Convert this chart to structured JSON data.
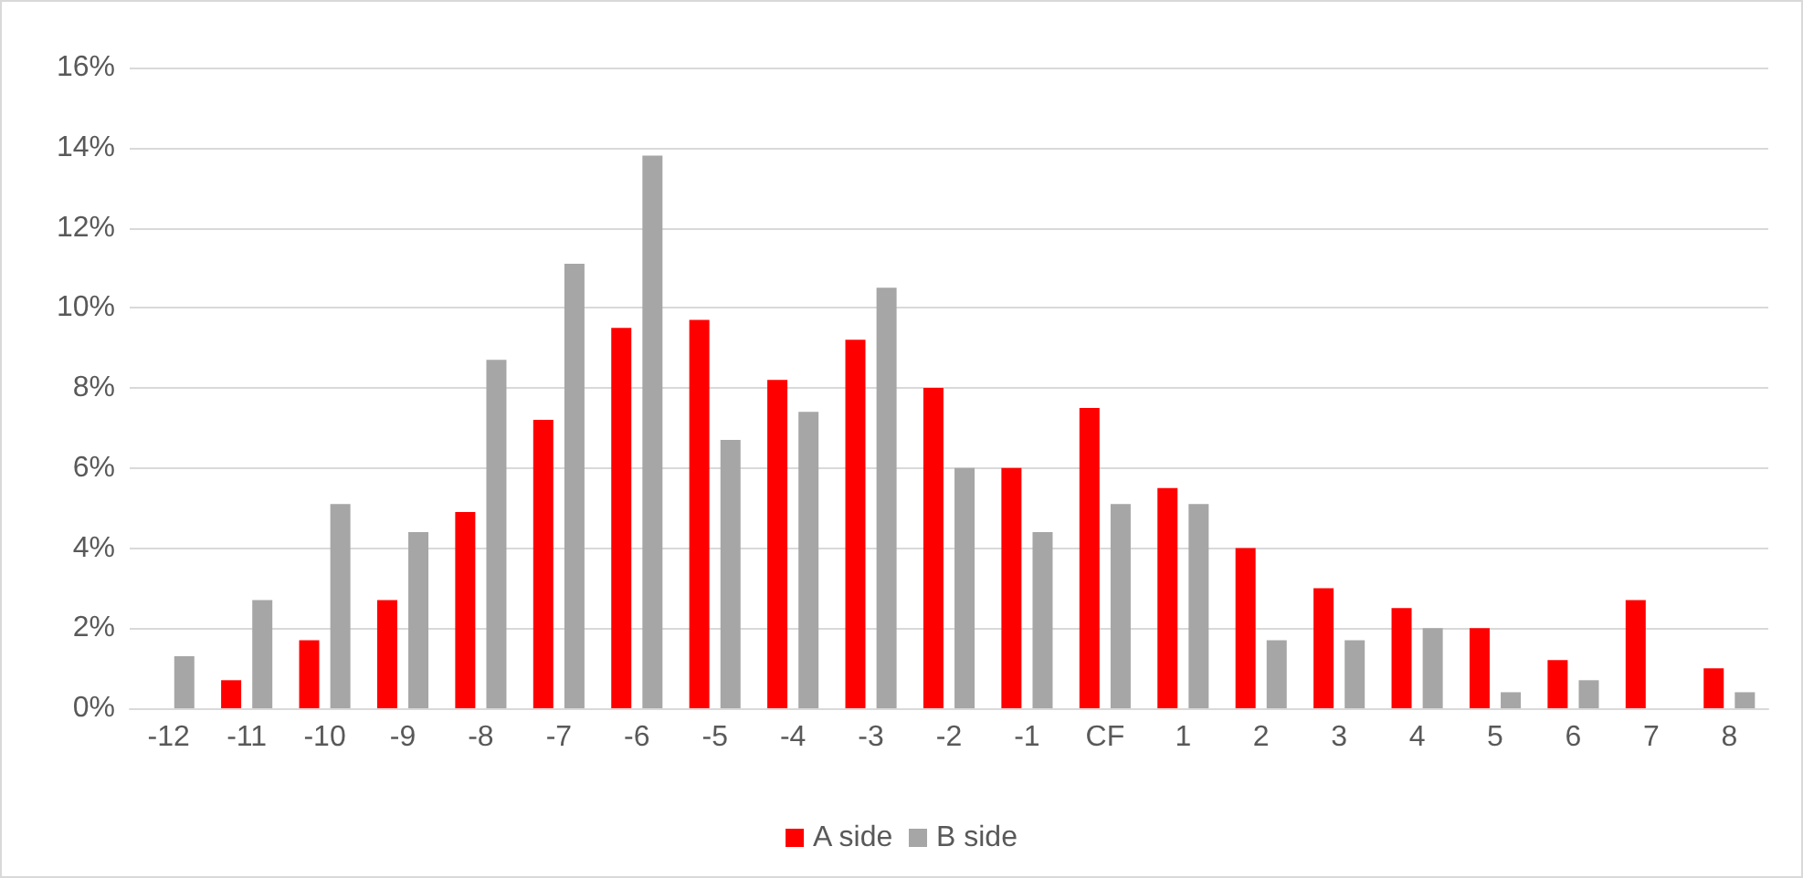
{
  "chart_data": {
    "type": "bar",
    "categories": [
      "-12",
      "-11",
      "-10",
      "-9",
      "-8",
      "-7",
      "-6",
      "-5",
      "-4",
      "-3",
      "-2",
      "-1",
      "CF",
      "1",
      "2",
      "3",
      "4",
      "5",
      "6",
      "7",
      "8"
    ],
    "series": [
      {
        "name": "A side",
        "color": "#ff0000",
        "values": [
          null,
          0.7,
          1.7,
          2.7,
          4.9,
          7.2,
          9.5,
          9.7,
          8.2,
          9.2,
          8.0,
          6.0,
          7.5,
          5.5,
          4.0,
          3.0,
          2.5,
          2.0,
          1.2,
          2.7,
          1.0
        ]
      },
      {
        "name": "B side",
        "color": "#a6a6a6",
        "values": [
          1.3,
          2.7,
          5.1,
          4.4,
          8.7,
          11.1,
          13.8,
          6.7,
          7.4,
          10.5,
          6.0,
          4.4,
          5.1,
          5.1,
          1.7,
          1.7,
          2.0,
          0.4,
          0.7,
          null,
          0.4
        ]
      }
    ],
    "ylim": [
      0,
      16
    ],
    "yticks": [
      {
        "value": 0,
        "label": "0%"
      },
      {
        "value": 2,
        "label": "2%"
      },
      {
        "value": 4,
        "label": "4%"
      },
      {
        "value": 6,
        "label": "6%"
      },
      {
        "value": 8,
        "label": "8%"
      },
      {
        "value": 10,
        "label": "10%"
      },
      {
        "value": 12,
        "label": "12%"
      },
      {
        "value": 14,
        "label": "14%"
      },
      {
        "value": 16,
        "label": "16%"
      }
    ],
    "grid": "y",
    "legend": "bottom"
  }
}
